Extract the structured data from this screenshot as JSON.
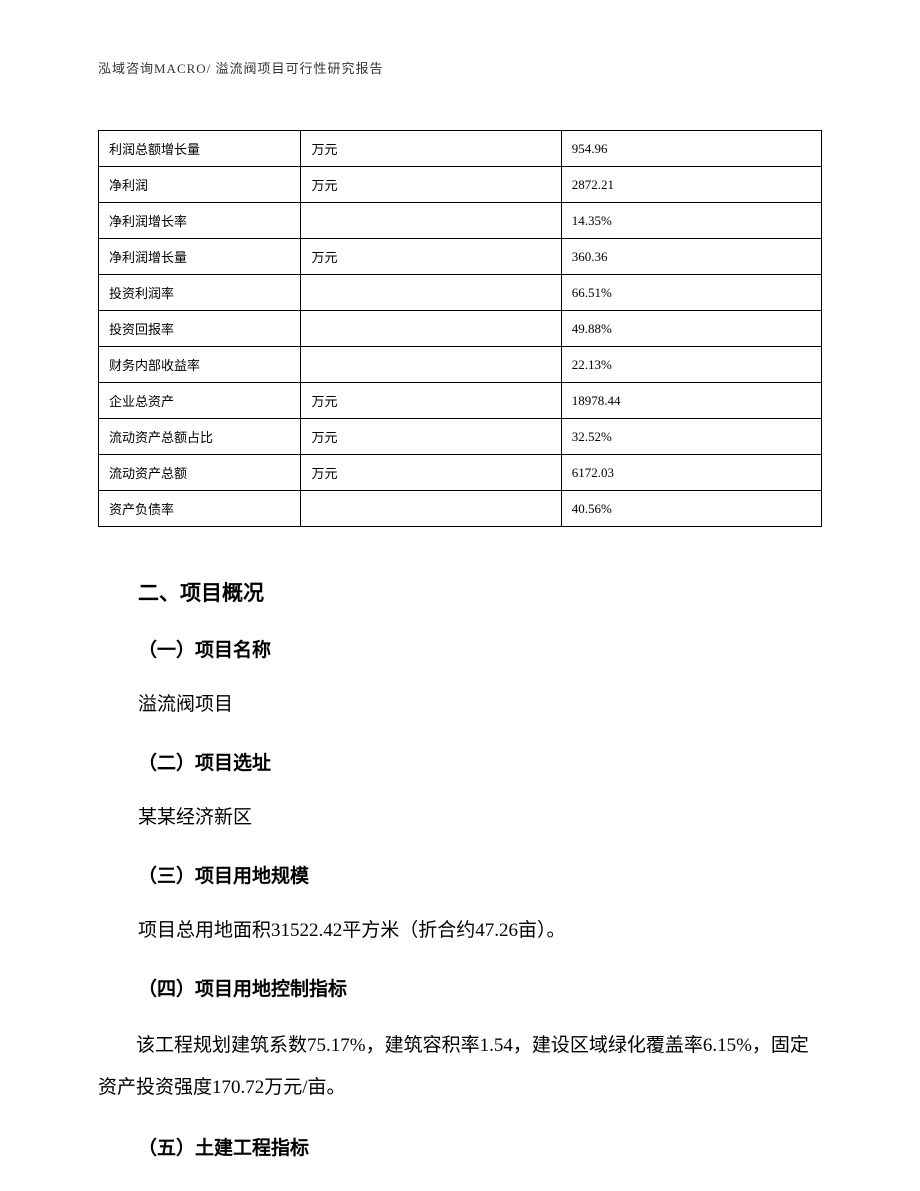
{
  "header": {
    "text": "泓域咨询MACRO/    溢流阀项目可行性研究报告"
  },
  "table": {
    "columns_width": [
      "28%",
      "36%",
      "36%"
    ],
    "border_color": "#000000",
    "font_size": 13,
    "rows": [
      {
        "label": "利润总额增长量",
        "unit": "万元",
        "value": "954.96"
      },
      {
        "label": "净利润",
        "unit": "万元",
        "value": "2872.21"
      },
      {
        "label": "净利润增长率",
        "unit": "",
        "value": "14.35%"
      },
      {
        "label": "净利润增长量",
        "unit": "万元",
        "value": "360.36"
      },
      {
        "label": "投资利润率",
        "unit": "",
        "value": "66.51%"
      },
      {
        "label": "投资回报率",
        "unit": "",
        "value": "49.88%"
      },
      {
        "label": "财务内部收益率",
        "unit": "",
        "value": "22.13%"
      },
      {
        "label": "企业总资产",
        "unit": "万元",
        "value": "18978.44"
      },
      {
        "label": "流动资产总额占比",
        "unit": "万元",
        "value": "32.52%"
      },
      {
        "label": "流动资产总额",
        "unit": "万元",
        "value": "6172.03"
      },
      {
        "label": "资产负债率",
        "unit": "",
        "value": "40.56%"
      }
    ]
  },
  "section": {
    "title": "二、项目概况",
    "subsections": {
      "s1": {
        "heading": "（一）项目名称",
        "body": "溢流阀项目"
      },
      "s2": {
        "heading": "（二）项目选址",
        "body": "某某经济新区"
      },
      "s3": {
        "heading": "（三）项目用地规模",
        "body": "项目总用地面积31522.42平方米（折合约47.26亩）。"
      },
      "s4": {
        "heading": "（四）项目用地控制指标",
        "body": "该工程规划建筑系数75.17%，建筑容积率1.54，建设区域绿化覆盖率6.15%，固定资产投资强度170.72万元/亩。"
      },
      "s5": {
        "heading": "（五）土建工程指标"
      }
    }
  }
}
